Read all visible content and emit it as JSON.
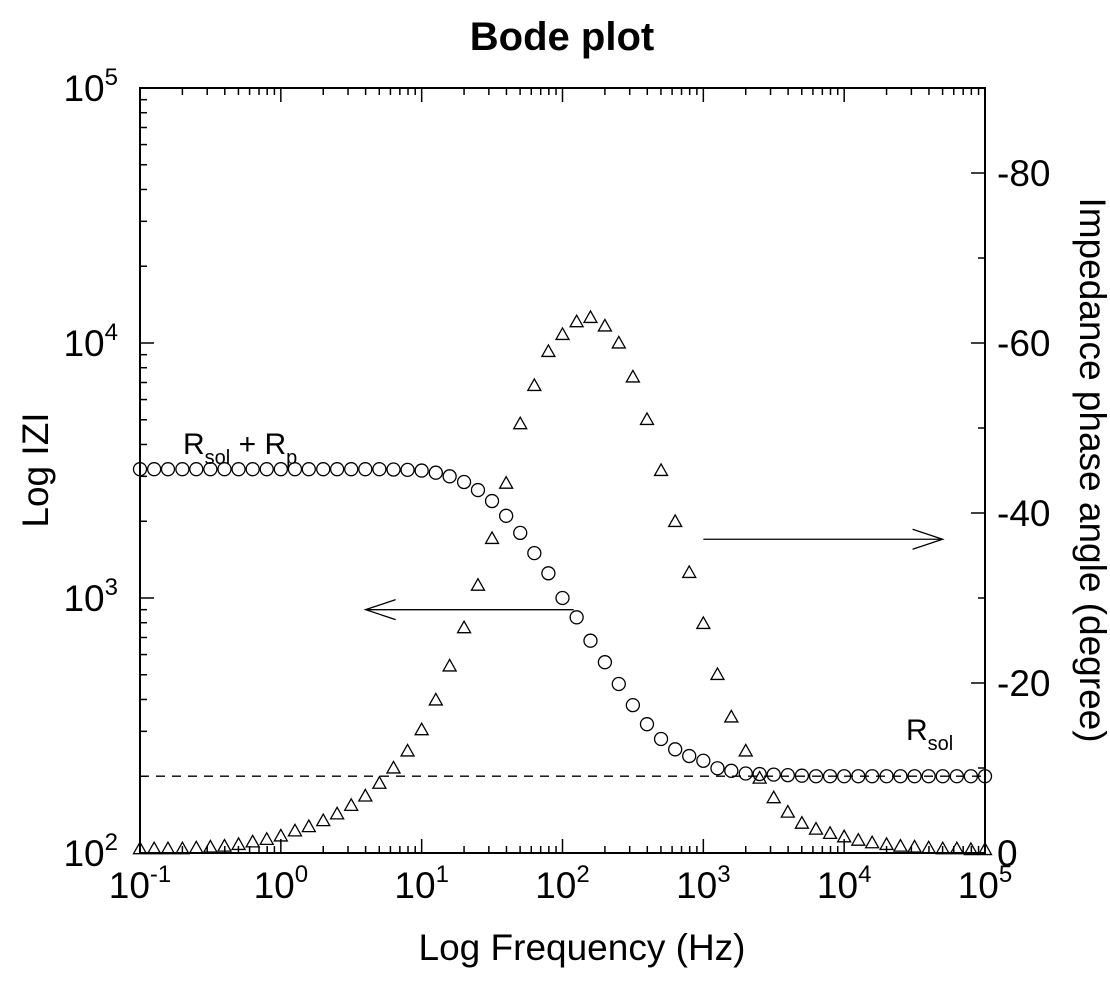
{
  "chart_data": {
    "type": "scatter",
    "title": "Bode plot",
    "xlabel": "Log Frequency (Hz)",
    "ylabel_left": "Log IZI",
    "ylabel_right": "Impedance phase angle (degree)",
    "x_scale": "log",
    "xlim": [
      0.1,
      100000
    ],
    "y_left_scale": "log",
    "y_left_lim": [
      100,
      100000
    ],
    "y_right_lim": [
      0,
      -90
    ],
    "x_ticks": [
      {
        "base": "10",
        "exp": "-1"
      },
      {
        "base": "10",
        "exp": "0"
      },
      {
        "base": "10",
        "exp": "1"
      },
      {
        "base": "10",
        "exp": "2"
      },
      {
        "base": "10",
        "exp": "3"
      },
      {
        "base": "10",
        "exp": "4"
      },
      {
        "base": "10",
        "exp": "5"
      }
    ],
    "y_left_ticks": [
      {
        "base": "10",
        "exp": "2"
      },
      {
        "base": "10",
        "exp": "3"
      },
      {
        "base": "10",
        "exp": "4"
      },
      {
        "base": "10",
        "exp": "5"
      }
    ],
    "y_right_ticks": [
      "0",
      "-20",
      "-40",
      "-60",
      "-80"
    ],
    "grid": false,
    "legend": "none",
    "series": [
      {
        "marker": "circle",
        "axis": "left",
        "x": [
          0.1,
          0.126,
          0.158,
          0.2,
          0.251,
          0.316,
          0.398,
          0.501,
          0.631,
          0.794,
          1,
          1.26,
          1.58,
          2,
          2.51,
          3.16,
          3.98,
          5.01,
          6.31,
          7.94,
          10,
          12.6,
          15.8,
          20,
          25.1,
          31.6,
          39.8,
          50.1,
          63.1,
          79.4,
          100,
          126,
          158,
          200,
          251,
          316,
          398,
          501,
          631,
          794,
          1000,
          1260,
          1580,
          2000,
          2510,
          3160,
          3980,
          5010,
          6310,
          7940,
          10000,
          12600,
          15800,
          20000,
          25100,
          31600,
          39800,
          50100,
          63100,
          79400,
          100000
        ],
        "y": [
          3200,
          3200,
          3200,
          3200,
          3200,
          3200,
          3200,
          3200,
          3200,
          3200,
          3200,
          3200,
          3200,
          3200,
          3200,
          3200,
          3200,
          3200,
          3190,
          3180,
          3160,
          3100,
          3000,
          2850,
          2650,
          2400,
          2100,
          1800,
          1500,
          1250,
          1000,
          840,
          680,
          560,
          460,
          380,
          320,
          280,
          255,
          240,
          230,
          215,
          210,
          205,
          204,
          203,
          202,
          201,
          200,
          200,
          200,
          200,
          200,
          200,
          200,
          200,
          200,
          200,
          200,
          200,
          200
        ]
      },
      {
        "marker": "triangle",
        "axis": "right",
        "x": [
          0.1,
          0.126,
          0.158,
          0.2,
          0.251,
          0.316,
          0.398,
          0.501,
          0.631,
          0.794,
          1,
          1.26,
          1.58,
          2,
          2.51,
          3.16,
          3.98,
          5.01,
          6.31,
          7.94,
          10,
          12.6,
          15.8,
          20,
          25.1,
          31.6,
          39.8,
          50.1,
          63.1,
          79.4,
          100,
          126,
          158,
          200,
          251,
          316,
          398,
          501,
          631,
          794,
          1000,
          1260,
          1580,
          2000,
          2510,
          3160,
          3980,
          5010,
          6310,
          7940,
          10000,
          12600,
          15800,
          20000,
          25100,
          31600,
          39800,
          50100,
          63100,
          79400,
          100000
        ],
        "y": [
          -0.5,
          -0.5,
          -0.5,
          -0.5,
          -0.6,
          -0.7,
          -0.8,
          -1,
          -1.3,
          -1.6,
          -2,
          -2.6,
          -3.1,
          -3.8,
          -4.6,
          -5.6,
          -6.7,
          -8.2,
          -10,
          -12,
          -14.5,
          -18,
          -22,
          -26.5,
          -31.5,
          -37,
          -43.5,
          -50.5,
          -55,
          -59,
          -61,
          -62.5,
          -63,
          -62,
          -60,
          -56,
          -51,
          -45,
          -39,
          -33,
          -27,
          -21,
          -16,
          -12,
          -8.8,
          -6.5,
          -4.8,
          -3.5,
          -2.8,
          -2.3,
          -1.9,
          -1.5,
          -1.2,
          -1,
          -0.8,
          -0.7,
          -0.6,
          -0.5,
          -0.5,
          -0.4,
          -0.4
        ]
      }
    ],
    "reference_lines": [
      {
        "axis": "left",
        "y": 200,
        "x_from": 0.1,
        "x_to": 100000,
        "style": "dashed"
      }
    ],
    "arrows": [
      {
        "axis": "left",
        "y": 900,
        "x_from": 120,
        "x_to": 4,
        "direction": "left"
      },
      {
        "axis": "left",
        "y": 1700,
        "x_from": 1000,
        "x_to": 50000,
        "direction": "right"
      }
    ],
    "annotations": [
      {
        "id": "rsol-rp",
        "parts": [
          {
            "text": "R",
            "role": "main"
          },
          {
            "text": "sol",
            "role": "sub"
          },
          {
            "text": " + R",
            "role": "main"
          },
          {
            "text": "p",
            "role": "sub"
          }
        ]
      },
      {
        "id": "rsol",
        "parts": [
          {
            "text": "R",
            "role": "main"
          },
          {
            "text": "sol",
            "role": "sub"
          }
        ]
      }
    ]
  }
}
